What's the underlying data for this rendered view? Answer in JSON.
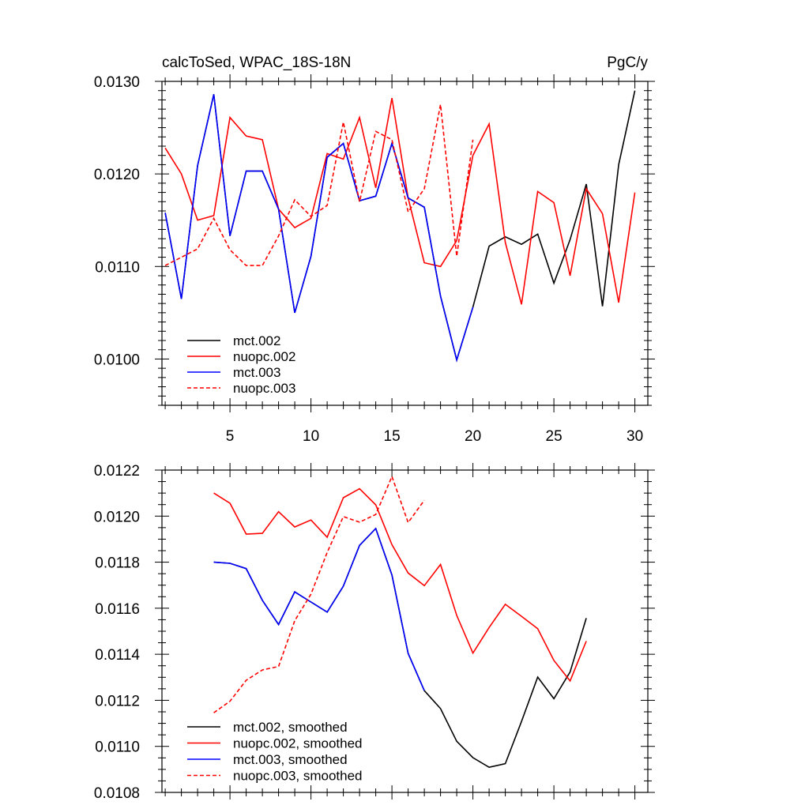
{
  "chart_data": [
    {
      "type": "line",
      "title_left": "calcToSed, WPAC_18S-18N",
      "title_right": "PgC/y",
      "xlim": [
        0.8,
        30.8
      ],
      "ylim": [
        0.0095,
        0.013
      ],
      "x_ticks": [
        5,
        10,
        15,
        20,
        25,
        30
      ],
      "y_ticks": [
        0.01,
        0.011,
        0.012,
        0.013
      ],
      "y_tick_labels": [
        "0.0100",
        "0.0110",
        "0.0120",
        "0.0130"
      ],
      "x_tick_labels": [
        "5",
        "10",
        "15",
        "20",
        "25",
        "30"
      ],
      "legend_position": "bottom-left",
      "series": [
        {
          "name": "mct.002",
          "color": "#000000",
          "dash": "solid",
          "x": [
            1,
            2,
            3,
            4,
            5,
            6,
            7,
            8,
            9,
            10,
            11,
            12,
            13,
            14,
            15,
            16,
            17,
            18,
            19,
            20,
            21,
            22,
            23,
            24,
            25,
            26,
            27,
            28,
            29,
            30
          ],
          "y": [
            0.01158,
            0.01065,
            0.01209,
            0.01286,
            0.01133,
            0.01203,
            0.01203,
            0.01162,
            0.0105,
            0.01111,
            0.01218,
            0.01233,
            0.01171,
            0.01176,
            0.01233,
            0.01174,
            0.01164,
            0.01068,
            0.00999,
            0.01056,
            0.01122,
            0.01132,
            0.01124,
            0.01135,
            0.01082,
            0.01129,
            0.01189,
            0.01057,
            0.0121,
            0.0129
          ]
        },
        {
          "name": "nuopc.002",
          "color": "#ff0000",
          "dash": "solid",
          "x": [
            1,
            2,
            3,
            4,
            5,
            6,
            7,
            8,
            9,
            10,
            11,
            12,
            13,
            14,
            15,
            16,
            17,
            18,
            19,
            20,
            21,
            22,
            23,
            24,
            25,
            26,
            27,
            28,
            29,
            30
          ],
          "y": [
            0.01228,
            0.012,
            0.0115,
            0.01155,
            0.01261,
            0.01241,
            0.01237,
            0.01162,
            0.01142,
            0.01152,
            0.01222,
            0.01216,
            0.01261,
            0.01185,
            0.01282,
            0.01174,
            0.01104,
            0.011,
            0.01128,
            0.0122,
            0.01254,
            0.01126,
            0.01059,
            0.01181,
            0.01169,
            0.0109,
            0.01184,
            0.01157,
            0.01061,
            0.0118
          ]
        },
        {
          "name": "mct.003",
          "color": "#0000ff",
          "dash": "solid",
          "x": [
            1,
            2,
            3,
            4,
            5,
            6,
            7,
            8,
            9,
            10,
            11,
            12,
            13,
            14,
            15,
            16,
            17,
            18,
            19,
            20
          ],
          "y": [
            0.01158,
            0.01065,
            0.01209,
            0.01286,
            0.01133,
            0.01203,
            0.01203,
            0.01162,
            0.0105,
            0.01111,
            0.01218,
            0.01233,
            0.01171,
            0.01176,
            0.01233,
            0.01174,
            0.01164,
            0.01068,
            0.00999,
            0.01056
          ]
        },
        {
          "name": "nuopc.003",
          "color": "#ff0000",
          "dash": "dashed",
          "x": [
            1,
            2,
            3,
            4,
            5,
            6,
            7,
            8,
            9,
            10,
            11,
            12,
            13,
            14,
            15,
            16,
            17,
            18,
            19,
            20
          ],
          "y": [
            0.01101,
            0.0111,
            0.01119,
            0.01152,
            0.01118,
            0.01101,
            0.01101,
            0.01133,
            0.01172,
            0.01154,
            0.01166,
            0.01256,
            0.0117,
            0.01246,
            0.01237,
            0.01159,
            0.01184,
            0.01275,
            0.01111,
            0.01237
          ]
        }
      ]
    },
    {
      "type": "line",
      "xlim": [
        0.8,
        30.8
      ],
      "ylim": [
        0.0108,
        0.0122
      ],
      "x_ticks": [
        5,
        10,
        15,
        20,
        25,
        30
      ],
      "y_ticks": [
        0.0108,
        0.011,
        0.0112,
        0.0114,
        0.0116,
        0.0118,
        0.012,
        0.0122
      ],
      "y_tick_labels": [
        "0.0108",
        "0.0110",
        "0.0112",
        "0.0114",
        "0.0116",
        "0.0118",
        "0.0120",
        "0.0122"
      ],
      "legend_position": "bottom-left",
      "series": [
        {
          "name": "mct.002, smoothed",
          "color": "#000000",
          "dash": "solid",
          "x": [
            4,
            5,
            6,
            7,
            8,
            9,
            10,
            11,
            12,
            13,
            14,
            15,
            16,
            17,
            18,
            19,
            20,
            21,
            22,
            23,
            24,
            25,
            26,
            27
          ],
          "y": [
            0.0118,
            0.011795,
            0.011772,
            0.011634,
            0.011529,
            0.011671,
            0.011627,
            0.011583,
            0.011696,
            0.011873,
            0.011946,
            0.011744,
            0.011404,
            0.011242,
            0.011164,
            0.011022,
            0.010951,
            0.010909,
            0.010925,
            0.011108,
            0.011301,
            0.011207,
            0.011323,
            0.011557
          ]
        },
        {
          "name": "nuopc.002, smoothed",
          "color": "#ff0000",
          "dash": "solid",
          "x": [
            4,
            5,
            6,
            7,
            8,
            9,
            10,
            11,
            12,
            13,
            14,
            15,
            16,
            17,
            18,
            19,
            20,
            21,
            22,
            23,
            24,
            25,
            26,
            27
          ],
          "y": [
            0.0121,
            0.012056,
            0.011922,
            0.011925,
            0.012019,
            0.011953,
            0.011983,
            0.011908,
            0.01208,
            0.012119,
            0.012049,
            0.011876,
            0.011753,
            0.011698,
            0.01179,
            0.011569,
            0.011405,
            0.011516,
            0.011617,
            0.011565,
            0.011511,
            0.011373,
            0.011284,
            0.011457
          ]
        },
        {
          "name": "mct.003, smoothed",
          "color": "#0000ff",
          "dash": "solid",
          "x": [
            4,
            5,
            6,
            7,
            8,
            9,
            10,
            11,
            12,
            13,
            14,
            15,
            16,
            17
          ],
          "y": [
            0.0118,
            0.011795,
            0.011772,
            0.011634,
            0.011529,
            0.011671,
            0.011627,
            0.011583,
            0.011696,
            0.011873,
            0.011946,
            0.011744,
            0.011404,
            0.011242
          ]
        },
        {
          "name": "nuopc.003, smoothed",
          "color": "#ff0000",
          "dash": "dashed",
          "x": [
            4,
            5,
            6,
            7,
            8,
            9,
            10,
            11,
            12,
            13,
            14,
            15,
            16,
            17
          ],
          "y": [
            0.011146,
            0.011196,
            0.011287,
            0.011332,
            0.011347,
            0.011546,
            0.011661,
            0.011842,
            0.011998,
            0.011974,
            0.012007,
            0.012172,
            0.011972,
            0.012069
          ]
        }
      ]
    }
  ]
}
